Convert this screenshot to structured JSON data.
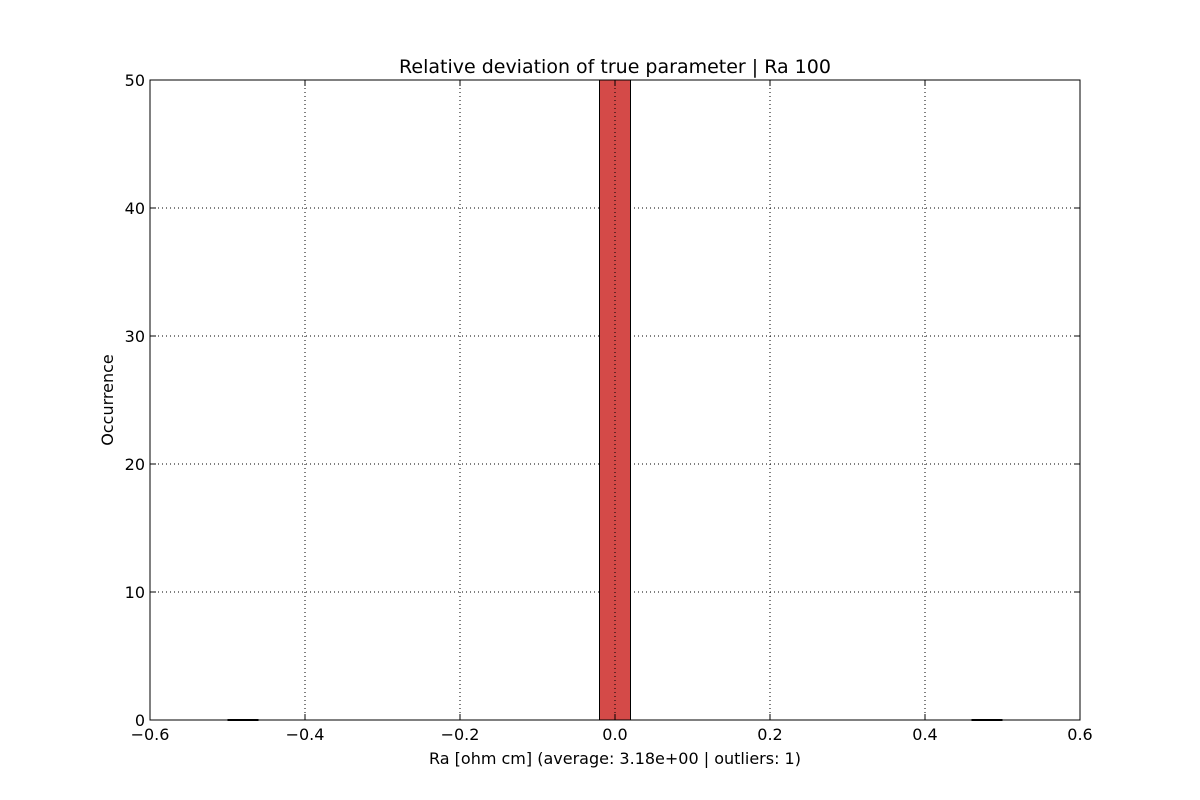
{
  "chart_data": {
    "type": "bar",
    "title": "Relative deviation of true parameter | Ra 100",
    "xlabel": "Ra [ohm cm] (average: 3.18e+00 | outliers: 1)",
    "ylabel": "Occurrence",
    "xlim": [
      -0.6,
      0.6
    ],
    "ylim": [
      0,
      50
    ],
    "xticks": [
      -0.6,
      -0.4,
      -0.2,
      0.0,
      0.2,
      0.4,
      0.6
    ],
    "xtick_labels": [
      "−0.6",
      "−0.4",
      "−0.2",
      "0.0",
      "0.2",
      "0.4",
      "0.6"
    ],
    "yticks": [
      0,
      10,
      20,
      30,
      40,
      50
    ],
    "ytick_labels": [
      "0",
      "10",
      "20",
      "30",
      "40",
      "50"
    ],
    "grid": true,
    "bar_color": "#d44a48",
    "bins": [
      {
        "x0": -0.5,
        "x1": -0.46,
        "value": 0
      },
      {
        "x0": -0.02,
        "x1": 0.02,
        "value": 50
      },
      {
        "x0": 0.46,
        "x1": 0.5,
        "value": 0
      }
    ]
  }
}
